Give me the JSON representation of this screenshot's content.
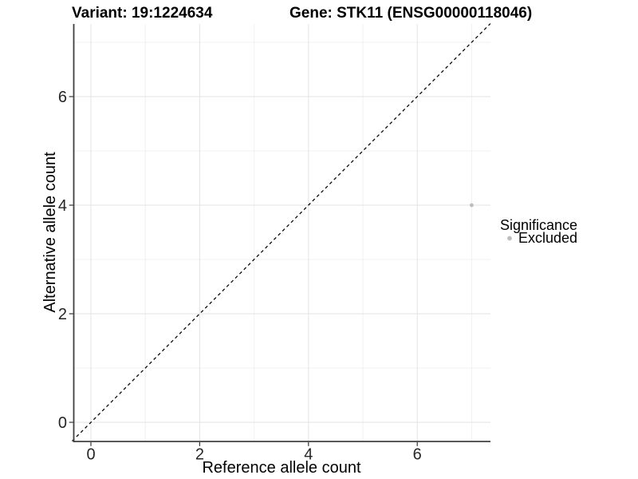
{
  "title": {
    "variant": "Variant: 19:1224634",
    "gene": "Gene: STK11 (ENSG00000118046)"
  },
  "legend": {
    "title": "Significance",
    "items": [
      {
        "label": "Excluded",
        "color": "#BDBDBD"
      }
    ]
  },
  "chart_data": {
    "type": "scatter",
    "title": "Variant: 19:1224634   Gene: STK11 (ENSG00000118046)",
    "xlabel": "Reference allele count",
    "ylabel": "Alternative allele count",
    "x_ticks": [
      0,
      2,
      4,
      6
    ],
    "y_ticks": [
      0,
      2,
      4,
      6
    ],
    "x_minor_gridlines": [
      1,
      3,
      5,
      7
    ],
    "y_minor_gridlines": [
      1,
      3,
      5,
      7
    ],
    "xlim": [
      -0.345,
      7.345
    ],
    "ylim": [
      -0.345,
      7.345
    ],
    "grid": "major+minor",
    "legend_position": "right",
    "series": [
      {
        "name": "Excluded",
        "color": "#BDBDBD",
        "points": [
          {
            "x": 7,
            "y": 4
          }
        ]
      }
    ],
    "reference_line": {
      "type": "identity",
      "equation": "y = x",
      "style": "dashed",
      "color": "#0a0a0a"
    }
  },
  "colors": {
    "background": "#ffffff",
    "grid_major": "#E3E3E3",
    "grid_minor": "#F0F0F0",
    "axis_line": "#404040",
    "tick_mark": "#333333",
    "point": "#BDBDBD"
  }
}
